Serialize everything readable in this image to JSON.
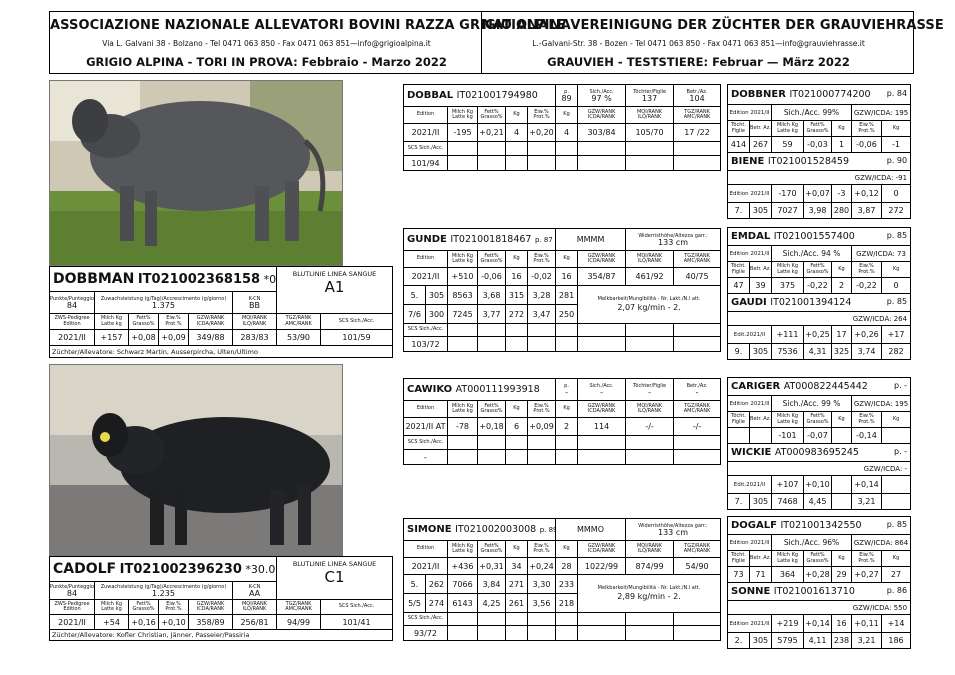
{
  "header": {
    "it_title": "ASSOCIAZIONE NAZIONALE ALLEVATORI BOVINI RAZZA GRIGIO ALPINA",
    "it_address": "Via L. Galvani 38 - Bolzano - Tel 0471 063 850 - Fax 0471 063 851—info@grigioalpina.it",
    "it_subtitle": "GRIGIO ALPINA - TORI IN PROVA: Febbraio - Marzo 2022",
    "de_title": "NATIONALE VEREINIGUNG DER ZÜCHTER DER GRAUVIEHRASSE",
    "de_address": "L.-Galvani-Str. 38 - Bozen - Tel 0471 063 850 - Fax 0471 063 851—info@grauviehrasse.it",
    "de_subtitle": "GRAUVIEH - TESTSTIERE: Februar — März 2022"
  },
  "labels": {
    "edition": "Edition",
    "milch": "Milch Kg Latte kg",
    "fett": "Fett% Grasso%",
    "kg": "Kg",
    "eiw": "Eiw.% Prot.%",
    "gzw": "GZW/RANK ICDA/RANK",
    "mqi": "MQI/RANK ILQ/RANK",
    "tgz": "TGZ/RANK AMC/RANK",
    "scs": "SCS Sich./Acc.",
    "p": "p.",
    "sich": "Sich./Acc.",
    "toechter": "Töchter/Figlie",
    "betr": "Betr./Az.",
    "widerrist": "Widerristhöhe/Altezza garr.:",
    "melkbarkeit": "Melkbarkeit/Mungibilità - Nr. Lakt./N.l att.",
    "tocht": "Töcht. Figlie",
    "betr_short": "Betr. Az.",
    "punkte": "Punkte/Punteggio",
    "zuwachs": "Zuwachsleistung (g/Tag)/Accrescimento (g/giorno)",
    "kcn": "K-CN",
    "zws": "ZWS-Pedigree Edition",
    "blutlinie": "BLUTLINIE LINEA SANGUE",
    "zuechter": "Züchter/Allevatore:",
    "gzwicda": "GZW/ICDA:"
  },
  "dobbman": {
    "name": "DOBBMAN",
    "id": "IT021002368158",
    "birth": "*07.04.19",
    "points": "84",
    "gain": "1.375",
    "kcn": "BB",
    "bloodline": "A1",
    "row": [
      "2021/II",
      "+157",
      "+0,08",
      "+0,09",
      "349/88",
      "283/83",
      "53/90",
      "101/59"
    ],
    "breeder": "Züchter/Allevatore: Schwarz Martin, Ausserpircha, Ulten/Ultimo"
  },
  "cadolf": {
    "name": "CADOLF",
    "id": "IT021002396230",
    "birth": "*30.09.19",
    "points": "84",
    "gain": "1.235",
    "kcn": "AA",
    "bloodline": "C1",
    "row": [
      "2021/II",
      "+54",
      "+0,16",
      "+0,10",
      "358/89",
      "256/81",
      "94/99",
      "101/41"
    ],
    "breeder": "Züchter/Allevatore: Kofler Christian, Jänner, Passeier/Passiria"
  },
  "doppal": {
    "name": "DOBBAL",
    "id": "IT021001794980",
    "p": "89",
    "acc": "97 %",
    "daughters": "137",
    "farms": "104",
    "row": [
      "2021/II",
      "-195",
      "+0,21",
      "4",
      "+0,20",
      "4",
      "303/84",
      "105/70",
      "17 /22"
    ],
    "scs": "101/94"
  },
  "gunde": {
    "name": "GUNDE",
    "id": "IT021001818467",
    "p": "p. 87",
    "type": "MMMM",
    "height": "133 cm",
    "row": [
      "2021/II",
      "+510",
      "-0,06",
      "16",
      "-0,02",
      "16",
      "354/87",
      "461/92",
      "40/75"
    ],
    "lact1": [
      "5.",
      "305",
      "8563",
      "3,68",
      "315",
      "3,28",
      "281"
    ],
    "lact2": [
      "7/6",
      "300",
      "7245",
      "3,77",
      "272",
      "3,47",
      "250"
    ],
    "milking": "2,07 kg/min - 2.",
    "scs": "103/72"
  },
  "cawiko": {
    "name": "CAWIKO",
    "id": "AT000111993918",
    "p": "-",
    "acc": "-",
    "daughters": "-",
    "farms": "-",
    "row": [
      "2021/II AT",
      "-78",
      "+0,18",
      "6",
      "+0,09",
      "2",
      "114",
      "-/-",
      "-/-"
    ],
    "scs": "-"
  },
  "simone": {
    "name": "SIMONE",
    "id": "IT021002003008",
    "p": "p. 89",
    "type": "MMMO",
    "height": "133 cm",
    "row": [
      "2021/II",
      "+436",
      "+0,31",
      "34",
      "+0,24",
      "28",
      "1022/99",
      "874/99",
      "54/90"
    ],
    "lact1": [
      "5.",
      "262",
      "7066",
      "3,84",
      "271",
      "3,30",
      "233"
    ],
    "lact2": [
      "5/5",
      "274",
      "6143",
      "4,25",
      "261",
      "3,56",
      "218"
    ],
    "milking": "2,89 kg/min - 2.",
    "scs": "93/72"
  },
  "dobbner": {
    "name": "DOBBNER",
    "id": "IT021000774200",
    "p": "p. 84",
    "edition": "Edition 2021/II",
    "acc": "Sich./Acc. 99%",
    "gzw": "GZW/ICDA: 195",
    "row": [
      "414",
      "267",
      "59",
      "-0,03",
      "1",
      "-0,06",
      "-1"
    ]
  },
  "biene": {
    "name": "BIENE",
    "id": "IT021001528459",
    "p": "p. 90",
    "gzw": "GZW/ICDA: -91",
    "row1": [
      "Edition 2021/II",
      "-170",
      "+0,07",
      "-3",
      "+0,12",
      "0"
    ],
    "row2": [
      "7.",
      "305",
      "7027",
      "3,98",
      "280",
      "3,87",
      "272"
    ]
  },
  "emdal": {
    "name": "EMDAL",
    "id": "IT021001557400",
    "p": "p. 85",
    "edition": "Edition 2021/II",
    "acc": "Sich./Acc. 94 %",
    "gzw": "GZW/ICDA: 73",
    "row": [
      "47",
      "39",
      "375",
      "-0,22",
      "2",
      "-0,22",
      "0"
    ]
  },
  "gaudi": {
    "name": "GAUDI",
    "id": "IT021001394124",
    "p": "p. 85",
    "gzw": "GZW/ICDA: 264",
    "row1": [
      "Edit.2021/II",
      "+111",
      "+0,25",
      "17",
      "+0,26",
      "+17"
    ],
    "row2": [
      "9.",
      "305",
      "7536",
      "4,31",
      "325",
      "3,74",
      "282"
    ]
  },
  "cariger": {
    "name": "CARIGER",
    "id": "AT000822445442",
    "p": "p. -",
    "edition": "Edition 2021/II",
    "acc": "Sich./Acc. 99 %",
    "gzw": "GZW/ICDA: 195",
    "row": [
      "-101",
      "-0,07",
      "-0,14"
    ]
  },
  "wickie": {
    "name": "WICKIE",
    "id": "AT000983695245",
    "p": "p. -",
    "gzw": "GZW/ICDA: -",
    "row1": [
      "Edit.2021/II",
      "+107",
      "+0,10",
      "+0,14"
    ],
    "row2": [
      "7.",
      "305",
      "7468",
      "4,45",
      "3,21"
    ]
  },
  "dogalf": {
    "name": "DOGALF",
    "id": "IT021001342550",
    "p": "p. 85",
    "edition": "Edition 2021/II",
    "acc": "Sich./Acc. 96%",
    "gzw": "GZW/ICDA: 864",
    "row": [
      "73",
      "71",
      "364",
      "+0,28",
      "29",
      "+0,27",
      "27"
    ]
  },
  "sonne": {
    "name": "SONNE",
    "id": "IT021001613710",
    "p": "p. 86",
    "gzw": "GZW/ICDA: 550",
    "row1": [
      "Edition 2021/II",
      "+219",
      "+0,14",
      "16",
      "+0,11",
      "+14"
    ],
    "row2": [
      "2.",
      "305",
      "5795",
      "4,11",
      "238",
      "3,21",
      "186"
    ]
  }
}
